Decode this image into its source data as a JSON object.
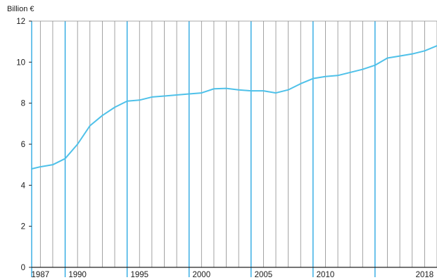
{
  "chart_data": {
    "type": "line",
    "ylabel": "Billion €",
    "xlabel": "",
    "xlim": [
      1986.3,
      2019
    ],
    "ylim": [
      0,
      12
    ],
    "yticks": [
      0,
      2,
      4,
      6,
      8,
      10,
      12
    ],
    "xtick_labels": [
      1987,
      1990,
      1995,
      2000,
      2005,
      2010,
      2018
    ],
    "grid": true,
    "highlight_years": [
      1986.3,
      1989,
      1994,
      1999,
      2004,
      2009,
      2014
    ],
    "colors": {
      "line": "#4fc1e9",
      "grid_major": "#1fa3e0",
      "grid_minor": "#8c8c8c",
      "axis": "#222222"
    },
    "series": [
      {
        "x": [
          1986.3,
          1987,
          1988,
          1989,
          1990,
          1991,
          1992,
          1993,
          1994,
          1995,
          1996,
          1997,
          1998,
          1999,
          2000,
          2001,
          2002,
          2003,
          2004,
          2005,
          2006,
          2007,
          2008,
          2009,
          2010,
          2011,
          2012,
          2013,
          2014,
          2015,
          2016,
          2017,
          2018,
          2019
        ],
        "values": [
          4.8,
          4.9,
          5.0,
          5.3,
          6.0,
          6.9,
          7.4,
          7.8,
          8.1,
          8.15,
          8.3,
          8.35,
          8.4,
          8.45,
          8.5,
          8.7,
          8.72,
          8.65,
          8.6,
          8.6,
          8.5,
          8.65,
          8.95,
          9.2,
          9.3,
          9.35,
          9.5,
          9.65,
          9.85,
          10.2,
          10.3,
          10.4,
          10.55,
          10.8
        ]
      }
    ]
  }
}
